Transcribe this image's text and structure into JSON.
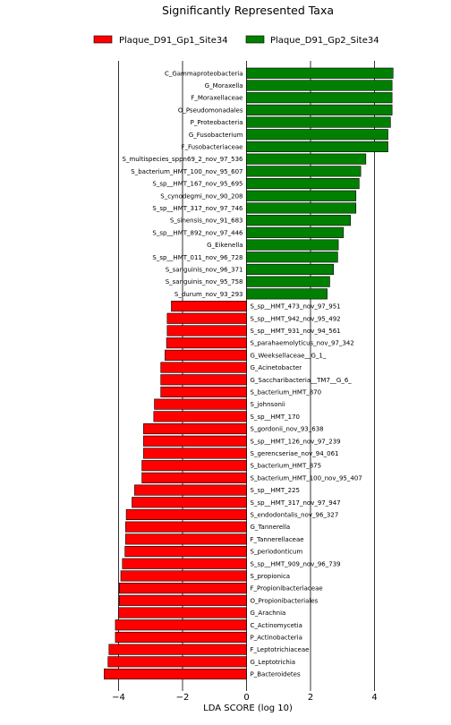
{
  "chart_data": {
    "type": "bar",
    "orientation": "horizontal",
    "title": "Significantly Represented Taxa",
    "xlabel": "LDA SCORE (log 10)",
    "ylabel": "",
    "xlim": [
      -4.5,
      5.0
    ],
    "xticks": [
      -4,
      -2,
      0,
      2,
      4
    ],
    "xtick_labels": [
      "−4",
      "−2",
      "0",
      "2",
      "4"
    ],
    "grid": "vertical lines at x ticks",
    "legend_position": "top",
    "series": [
      {
        "name": "Plaque_D91_Gp1_Site34",
        "color": "#ff0000"
      },
      {
        "name": "Plaque_D91_Gp2_Site34",
        "color": "#008000"
      }
    ],
    "bars": [
      {
        "label": "C_Gammaproteobacteria",
        "value": 4.58,
        "series": 1
      },
      {
        "label": "G_Moraxella",
        "value": 4.55,
        "series": 1
      },
      {
        "label": "F_Moraxellaceae",
        "value": 4.55,
        "series": 1
      },
      {
        "label": "O_Pseudomonadales",
        "value": 4.55,
        "series": 1
      },
      {
        "label": "P_Proteobacteria",
        "value": 4.5,
        "series": 1
      },
      {
        "label": "G_Fusobacterium",
        "value": 4.42,
        "series": 1
      },
      {
        "label": "F_Fusobacteriaceae",
        "value": 4.42,
        "series": 1
      },
      {
        "label": "S_multispecies_sppn69_2_nov_97_536",
        "value": 3.73,
        "series": 1
      },
      {
        "label": "S_bacterium_HMT_100_nov_95_607",
        "value": 3.57,
        "series": 1
      },
      {
        "label": "S_sp__HMT_167_nov_95_695",
        "value": 3.52,
        "series": 1
      },
      {
        "label": "S_cynodegmi_nov_90_208",
        "value": 3.42,
        "series": 1
      },
      {
        "label": "S_sp__HMT_317_nov_97_746",
        "value": 3.42,
        "series": 1
      },
      {
        "label": "S_sinensis_nov_91_683",
        "value": 3.25,
        "series": 1
      },
      {
        "label": "S_sp__HMT_892_nov_97_446",
        "value": 3.03,
        "series": 1
      },
      {
        "label": "G_Eikenella",
        "value": 2.87,
        "series": 1
      },
      {
        "label": "S_sp__HMT_011_nov_96_728",
        "value": 2.85,
        "series": 1
      },
      {
        "label": "S_sanguinis_nov_96_371",
        "value": 2.72,
        "series": 1
      },
      {
        "label": "S_sanguinis_nov_95_758",
        "value": 2.6,
        "series": 1
      },
      {
        "label": "S_durum_nov_93_293",
        "value": 2.52,
        "series": 1
      },
      {
        "label": "S_sp__HMT_473_nov_97_951",
        "value": -2.35,
        "series": 0
      },
      {
        "label": "S_sp__HMT_942_nov_95_492",
        "value": -2.48,
        "series": 0
      },
      {
        "label": "S_sp__HMT_931_nov_94_561",
        "value": -2.48,
        "series": 0
      },
      {
        "label": "S_parahaemolyticus_nov_97_342",
        "value": -2.5,
        "series": 0
      },
      {
        "label": "G_Weeksellaceae__G_1_",
        "value": -2.55,
        "series": 0
      },
      {
        "label": "G_Acinetobacter",
        "value": -2.68,
        "series": 0
      },
      {
        "label": "G_Saccharibacteria__TM7__G_6_",
        "value": -2.68,
        "series": 0
      },
      {
        "label": "S_bacterium_HMT_870",
        "value": -2.68,
        "series": 0
      },
      {
        "label": "S_johnsonii",
        "value": -2.88,
        "series": 0
      },
      {
        "label": "S_sp__HMT_170",
        "value": -2.9,
        "series": 0
      },
      {
        "label": "S_gordonii_nov_93_638",
        "value": -3.22,
        "series": 0
      },
      {
        "label": "S_sp__HMT_126_nov_97_239",
        "value": -3.22,
        "series": 0
      },
      {
        "label": "S_gerencseriae_nov_94_061",
        "value": -3.22,
        "series": 0
      },
      {
        "label": "S_bacterium_HMT_875",
        "value": -3.27,
        "series": 0
      },
      {
        "label": "S_bacterium_HMT_100_nov_95_407",
        "value": -3.27,
        "series": 0
      },
      {
        "label": "S_sp__HMT_225",
        "value": -3.5,
        "series": 0
      },
      {
        "label": "S_sp__HMT_317_nov_97_947",
        "value": -3.58,
        "series": 0
      },
      {
        "label": "S_endodontalis_nov_96_327",
        "value": -3.76,
        "series": 0
      },
      {
        "label": "G_Tannerella",
        "value": -3.78,
        "series": 0
      },
      {
        "label": "F_Tannerellaceae",
        "value": -3.78,
        "series": 0
      },
      {
        "label": "S_periodonticum",
        "value": -3.8,
        "series": 0
      },
      {
        "label": "S_sp__HMT_909_nov_96_739",
        "value": -3.88,
        "series": 0
      },
      {
        "label": "S_propionica",
        "value": -3.93,
        "series": 0
      },
      {
        "label": "F_Propionibacteriaceae",
        "value": -3.98,
        "series": 0
      },
      {
        "label": "O_Propionibacteriales",
        "value": -3.98,
        "series": 0
      },
      {
        "label": "G_Arachnia",
        "value": -4.0,
        "series": 0
      },
      {
        "label": "C_Actinomycetia",
        "value": -4.1,
        "series": 0
      },
      {
        "label": "P_Actinobacteria",
        "value": -4.1,
        "series": 0
      },
      {
        "label": "F_Leptotrichiaceae",
        "value": -4.3,
        "series": 0
      },
      {
        "label": "G_Leptotrichia",
        "value": -4.33,
        "series": 0
      },
      {
        "label": "P_Bacteroidetes",
        "value": -4.45,
        "series": 0
      }
    ]
  }
}
